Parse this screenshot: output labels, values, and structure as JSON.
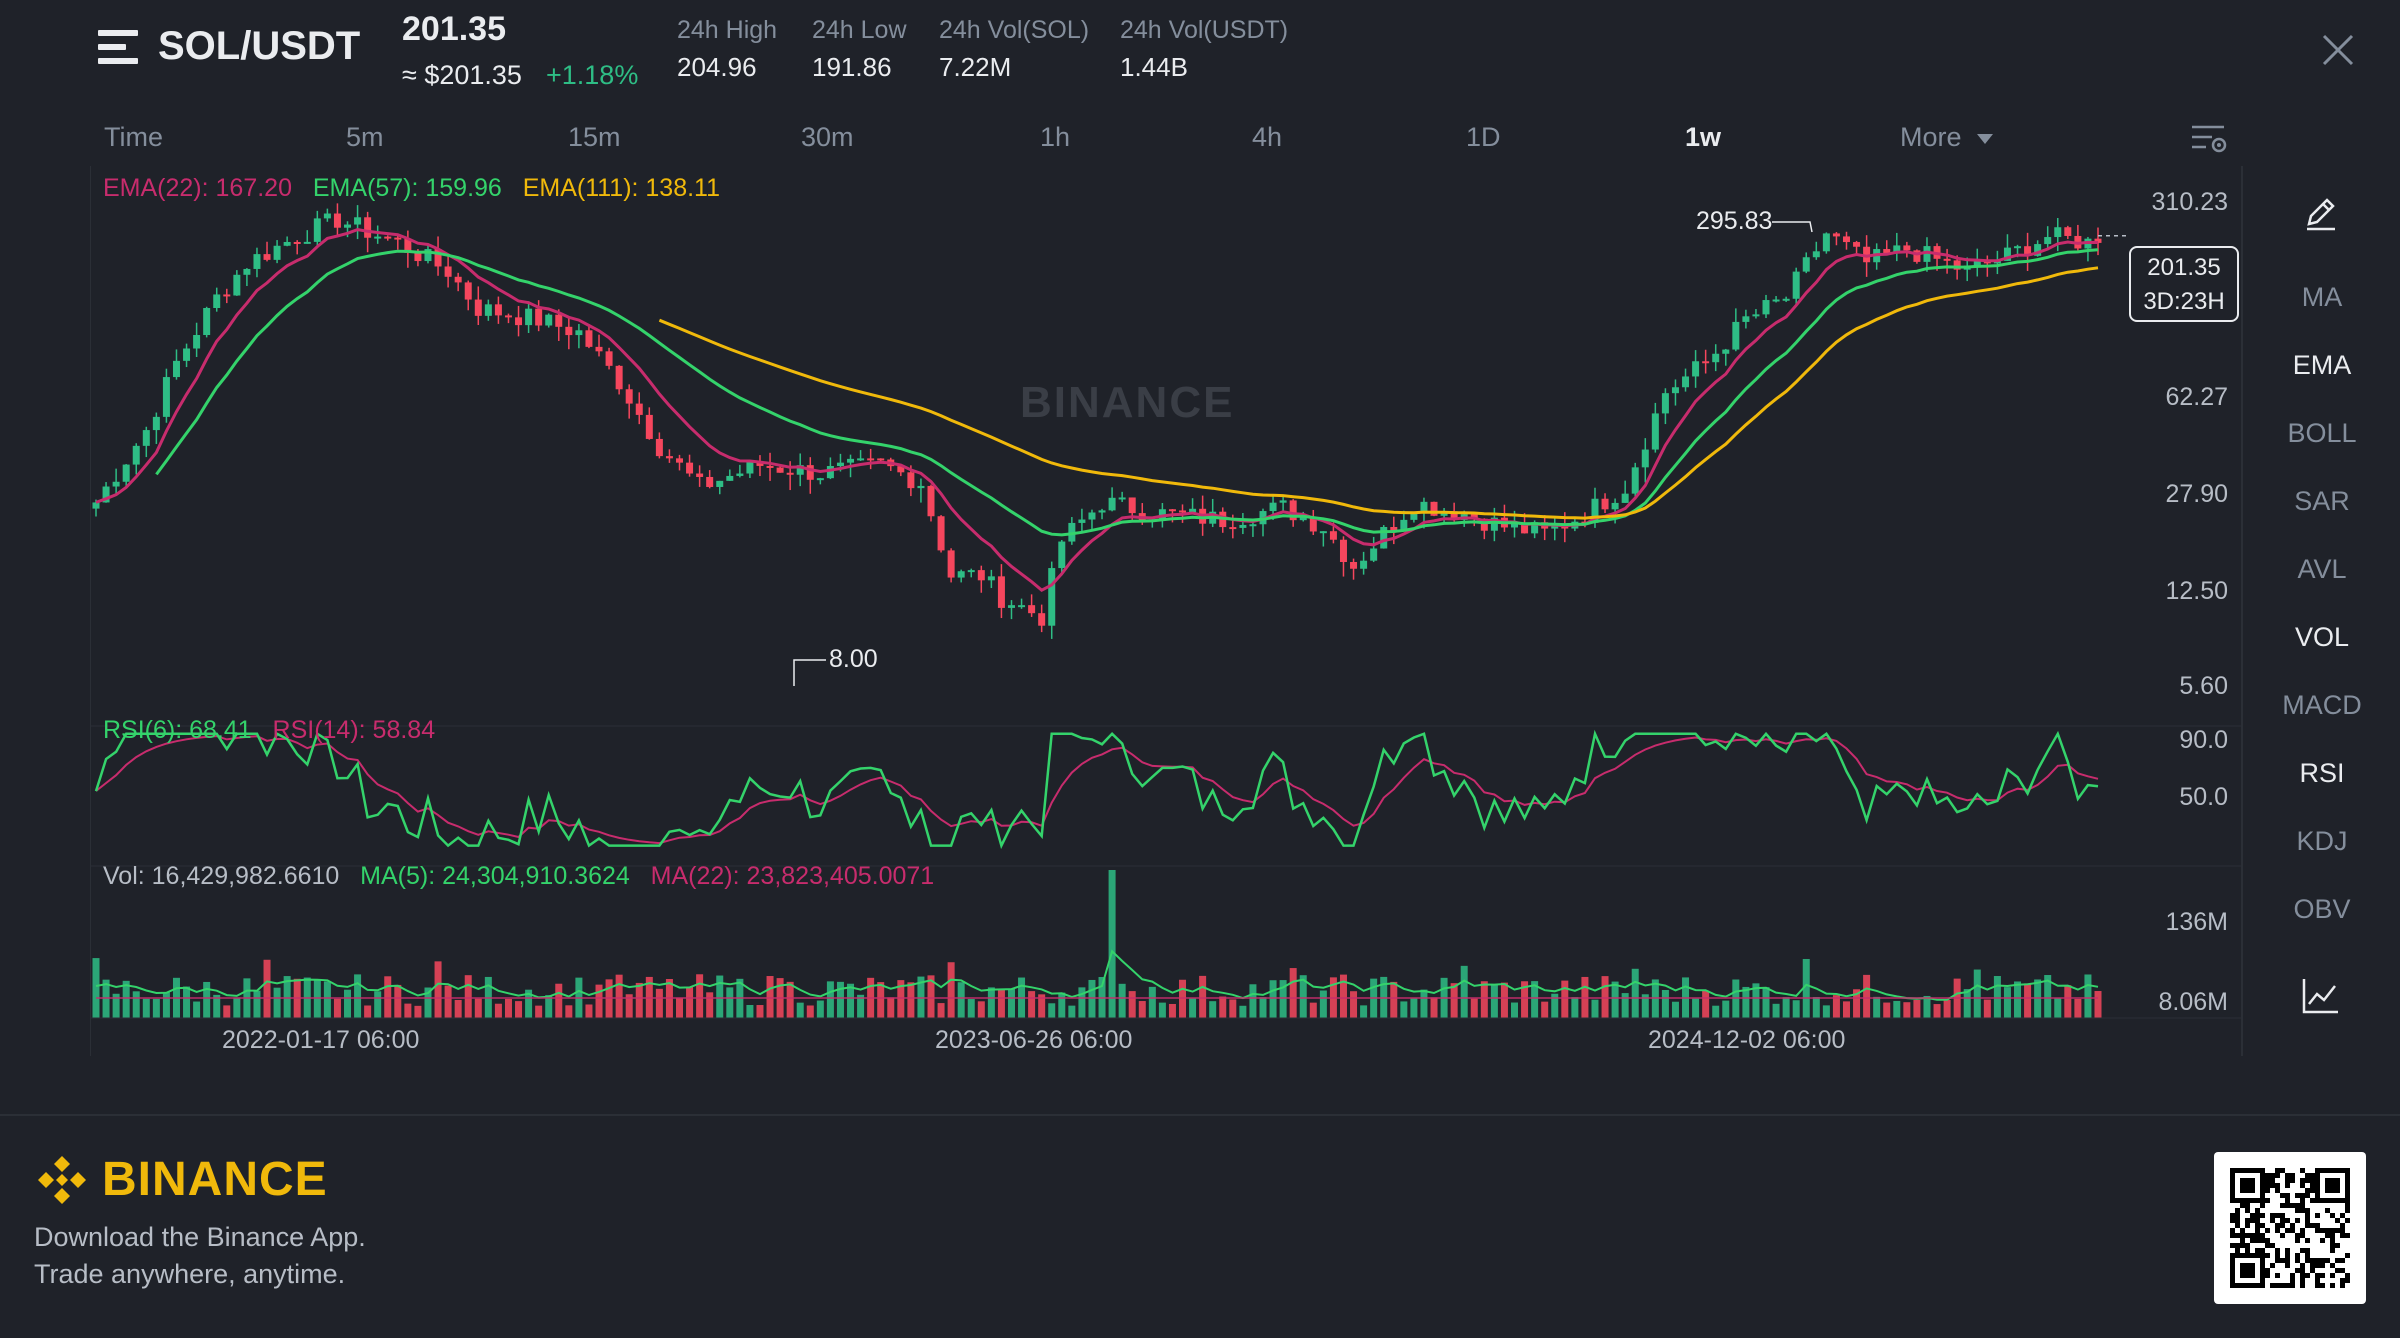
{
  "header": {
    "pair": "SOL/USDT",
    "last_price": "201.35",
    "usd_price": "≈ $201.35",
    "change": "+1.18%",
    "stats": [
      {
        "label": "24h High",
        "value": "204.96"
      },
      {
        "label": "24h Low",
        "value": "191.86"
      },
      {
        "label": "24h Vol(SOL)",
        "value": "7.22M"
      },
      {
        "label": "24h Vol(USDT)",
        "value": "1.44B"
      }
    ]
  },
  "intervals": [
    "Time",
    "5m",
    "15m",
    "30m",
    "1h",
    "4h",
    "1D",
    "1w",
    "More"
  ],
  "active_interval": "1w",
  "legend": {
    "ema22": "EMA(22): 167.20",
    "ema57": "EMA(57): 159.96",
    "ema111": "EMA(111): 138.11",
    "rsi6": "RSI(6): 68.41",
    "rsi14": "RSI(14): 58.84",
    "vol": "Vol: 16,429,982.6610",
    "vma5": "MA(5): 24,304,910.3624",
    "vma22": "MA(22): 23,823,405.0071"
  },
  "price_axis": [
    "310.23",
    "62.27",
    "27.90",
    "12.50",
    "5.60"
  ],
  "rsi_axis": [
    "90.0",
    "50.0"
  ],
  "vol_axis": [
    "136M",
    "8.06M"
  ],
  "time_axis": [
    "2022-01-17 06:00",
    "2023-06-26 06:00",
    "2024-12-02 06:00"
  ],
  "annotations": {
    "high": "295.83",
    "low": "8.00"
  },
  "current_tag": {
    "price": "201.35",
    "countdown": "3D:23H"
  },
  "watermark": "BINANCE",
  "toolbar": [
    "MA",
    "EMA",
    "BOLL",
    "SAR",
    "AVL",
    "VOL",
    "MACD",
    "RSI",
    "KDJ",
    "OBV"
  ],
  "toolbar_active": [
    "EMA",
    "VOL",
    "RSI"
  ],
  "footer": {
    "brand": "BINANCE",
    "line1": "Download the Binance App.",
    "line2": "Trade anywhere, anytime."
  },
  "colors": {
    "up": "#2ebd85",
    "down": "#f6465d",
    "ema22": "#c72c6d",
    "ema57": "#34d36b",
    "ema111": "#f0b90b",
    "accent": "#f0b90b"
  },
  "chart_data": {
    "type": "candlestick",
    "scale": "log",
    "price_levels": [
      310.23,
      62.27,
      27.9,
      12.5,
      5.6
    ],
    "high": 295.83,
    "low": 8.0,
    "close": 201.35,
    "ema": [
      {
        "period": 22,
        "last": 167.2
      },
      {
        "period": 57,
        "last": 159.96
      },
      {
        "period": 111,
        "last": 138.11
      }
    ],
    "rsi": [
      {
        "period": 6,
        "last": 68.41
      },
      {
        "period": 14,
        "last": 58.84
      }
    ],
    "rsi_levels": [
      90.0,
      50.0
    ],
    "volume_last": 16429982.661,
    "volume_ma": [
      {
        "period": 5,
        "last": 24304910.3624
      },
      {
        "period": 22,
        "last": 23823405.0071
      }
    ],
    "volume_levels": [
      "136M",
      "8.06M"
    ]
  }
}
